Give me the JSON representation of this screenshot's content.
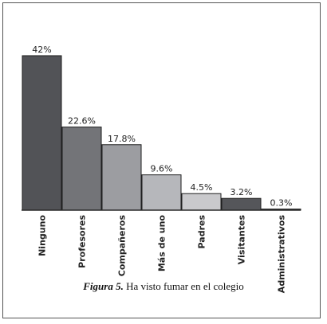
{
  "chart_data": {
    "type": "bar",
    "categories": [
      "Ninguno",
      "Profesores",
      "Compañeros",
      "Más de uno",
      "Padres",
      "Visitantes",
      "Administrativos"
    ],
    "values": [
      42,
      22.6,
      17.8,
      9.6,
      4.5,
      3.2,
      0.3
    ],
    "value_labels": [
      "42%",
      "22.6%",
      "17.8%",
      "9.6%",
      "4.5%",
      "3.2%",
      "0.3%"
    ],
    "colors": [
      "#525357",
      "#737478",
      "#9c9da1",
      "#b6b7bb",
      "#c9c9cc",
      "#55565a",
      "#2b2b2e"
    ],
    "ylim": [
      0,
      45
    ],
    "grid": false
  },
  "caption": {
    "figure_label": "Figura 5.",
    "text": " Ha visto fumar en el colegio"
  }
}
